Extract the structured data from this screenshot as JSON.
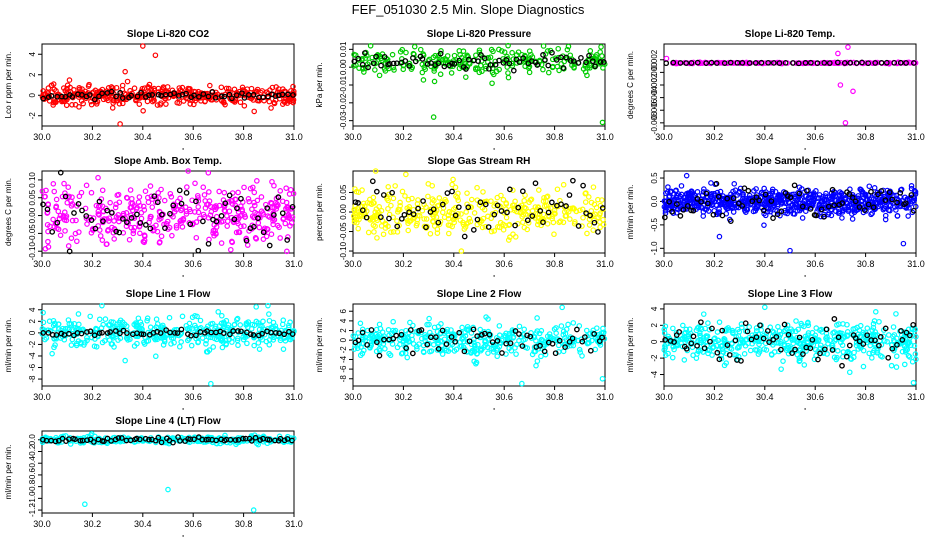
{
  "title": "FEF_051030  2.5 Min. Slope Diagnostics",
  "colors": {
    "black": "#000000"
  },
  "chart_data": [
    {
      "type": "scatter",
      "title": "Slope Li-820 CO2",
      "ylabel": "Lco r ppm per min.",
      "color": "#ff0000",
      "xlim": [
        30.0,
        31.0
      ],
      "ylim": [
        -3,
        5
      ],
      "xticks": [
        30.0,
        30.2,
        30.4,
        30.6,
        30.8,
        31.0
      ],
      "xtick_labels": [
        "30.0",
        "30.2",
        "30.4",
        "30.6",
        "30.8",
        "31.0"
      ],
      "yticks": [
        -2,
        0,
        2,
        4
      ],
      "ytick_labels": [
        "-2",
        "0",
        "2",
        "4"
      ],
      "center": 0,
      "spread": 0.45,
      "outliers": [
        [
          30.31,
          -2.8
        ],
        [
          30.4,
          4.8
        ],
        [
          30.45,
          3.9
        ],
        [
          30.33,
          2.3
        ]
      ],
      "n": 420,
      "nblack": 60,
      "black_spread": 0.15
    },
    {
      "type": "scatter",
      "title": "Slope Li-820 Pressure",
      "ylabel": "kPa per min.",
      "color": "#00cc00",
      "xlim": [
        30.0,
        31.0
      ],
      "ylim": [
        -0.033,
        0.013
      ],
      "xticks": [
        30.0,
        30.2,
        30.4,
        30.6,
        30.8,
        31.0
      ],
      "xtick_labels": [
        "30.0",
        "30.2",
        "30.4",
        "30.6",
        "30.8",
        "31.0"
      ],
      "yticks": [
        -0.03,
        -0.02,
        -0.01,
        0.0,
        0.01
      ],
      "ytick_labels": [
        "-0.03",
        "-0.02",
        "-0.01",
        "0.00",
        "0.01"
      ],
      "center": 0.003,
      "spread": 0.004,
      "outliers": [
        [
          30.32,
          -0.028
        ],
        [
          30.99,
          -0.031
        ],
        [
          30.07,
          0.012
        ]
      ],
      "n": 260,
      "nblack": 70,
      "black_spread": 0.003
    },
    {
      "type": "scatter",
      "title": "Slope Li-820 Temp.",
      "ylabel": "degrees C per min.",
      "color": "#ff00ff",
      "xlim": [
        30.0,
        31.0
      ],
      "ylim": [
        -0.0085,
        0.0045
      ],
      "xticks": [
        30.0,
        30.2,
        30.4,
        30.6,
        30.8,
        31.0
      ],
      "xtick_labels": [
        "30.0",
        "30.2",
        "30.4",
        "30.6",
        "30.8",
        "31.0"
      ],
      "yticks": [
        -0.008,
        -0.006,
        -0.004,
        -0.002,
        0.0,
        0.002
      ],
      "ytick_labels": [
        "-0.008",
        "-0.006",
        "-0.004",
        "-0.002",
        "0.000",
        "0.002"
      ],
      "center": 0.0015,
      "spread": 5e-05,
      "outliers": [
        [
          30.73,
          0.004
        ],
        [
          30.72,
          -0.008
        ],
        [
          30.7,
          -0.002
        ],
        [
          30.75,
          -0.003
        ],
        [
          30.69,
          0.003
        ],
        [
          30.01,
          0.0022
        ]
      ],
      "n": 160,
      "nblack": 40,
      "black_spread": 3e-05
    },
    {
      "type": "scatter",
      "title": "Slope Amb. Box Temp.",
      "ylabel": "degrees C per min.",
      "color": "#ff00ff",
      "xlim": [
        30.0,
        31.0
      ],
      "ylim": [
        -0.105,
        0.125
      ],
      "xticks": [
        30.0,
        30.2,
        30.4,
        30.6,
        30.8,
        31.0
      ],
      "xtick_labels": [
        "30.0",
        "30.2",
        "30.4",
        "30.6",
        "30.8",
        "31.0"
      ],
      "yticks": [
        -0.1,
        -0.05,
        0.0,
        0.05,
        0.1
      ],
      "ytick_labels": [
        "-0.10",
        "-0.05",
        "0.00",
        "0.05",
        "0.10"
      ],
      "center": 0.0,
      "spread": 0.04,
      "outliers": [
        [
          30.58,
          0.125
        ],
        [
          30.66,
          0.12
        ]
      ],
      "n": 420,
      "nblack": 60,
      "black_spread": 0.04
    },
    {
      "type": "scatter",
      "title": "Slope Gas Stream RH",
      "ylabel": "percent per min.",
      "color": "#ffff00",
      "xlim": [
        30.0,
        31.0
      ],
      "ylim": [
        -0.105,
        0.105
      ],
      "xticks": [
        30.0,
        30.2,
        30.4,
        30.6,
        30.8,
        31.0
      ],
      "xtick_labels": [
        "30.0",
        "30.2",
        "30.4",
        "30.6",
        "30.8",
        "31.0"
      ],
      "yticks": [
        -0.1,
        -0.05,
        0.0,
        0.05
      ],
      "ytick_labels": [
        "-0.10",
        "-0.05",
        "0.00",
        "0.05"
      ],
      "center": 0.0,
      "spread": 0.03,
      "outliers": [
        [
          30.09,
          0.105
        ],
        [
          30.43,
          -0.1
        ]
      ],
      "n": 380,
      "nblack": 60,
      "black_spread": 0.03
    },
    {
      "type": "scatter",
      "title": "Slope Sample Flow",
      "ylabel": "ml/min per min.",
      "color": "#0000ff",
      "xlim": [
        30.0,
        31.0
      ],
      "ylim": [
        -1.1,
        0.65
      ],
      "xticks": [
        30.0,
        30.2,
        30.4,
        30.6,
        30.8,
        31.0
      ],
      "xtick_labels": [
        "30.0",
        "30.2",
        "30.4",
        "30.6",
        "30.8",
        "31.0"
      ],
      "yticks": [
        -1.0,
        -0.5,
        0.0,
        0.5
      ],
      "ytick_labels": [
        "-1.0",
        "-0.5",
        "0.0",
        "0.5"
      ],
      "center": 0.0,
      "spread": 0.14,
      "outliers": [
        [
          30.09,
          0.55
        ],
        [
          30.5,
          -1.05
        ],
        [
          30.95,
          -0.9
        ],
        [
          30.22,
          -0.75
        ]
      ],
      "n": 700,
      "nblack": 70,
      "black_spread": 0.2
    },
    {
      "type": "scatter",
      "title": "Slope Line 1 Flow",
      "ylabel": "ml/min per min.",
      "color": "#00ffff",
      "xlim": [
        30.0,
        31.0
      ],
      "ylim": [
        -9.2,
        5
      ],
      "xticks": [
        30.0,
        30.2,
        30.4,
        30.6,
        30.8,
        31.0
      ],
      "xtick_labels": [
        "30.0",
        "30.2",
        "30.4",
        "30.6",
        "30.8",
        "31.0"
      ],
      "yticks": [
        -8,
        -6,
        -4,
        -2,
        0,
        2,
        4
      ],
      "ytick_labels": [
        "-8",
        "-6",
        "-4",
        "-2",
        "0",
        "2",
        "4"
      ],
      "center": 0.0,
      "spread": 1.3,
      "outliers": [
        [
          30.67,
          -8.8
        ],
        [
          30.33,
          -4.8
        ],
        [
          30.85,
          4.5
        ]
      ],
      "n": 400,
      "nblack": 60,
      "black_spread": 0.2
    },
    {
      "type": "scatter",
      "title": "Slope Line 2 Flow",
      "ylabel": "ml/min per min.",
      "color": "#00ffff",
      "xlim": [
        30.0,
        31.0
      ],
      "ylim": [
        -9.5,
        7.5
      ],
      "xticks": [
        30.0,
        30.2,
        30.4,
        30.6,
        30.8,
        31.0
      ],
      "xtick_labels": [
        "30.0",
        "30.2",
        "30.4",
        "30.6",
        "30.8",
        "31.0"
      ],
      "yticks": [
        -8,
        -6,
        -4,
        -2,
        0,
        2,
        4,
        6
      ],
      "ytick_labels": [
        "-8",
        "-6",
        "-4",
        "-2",
        "0",
        "2",
        "4",
        "6"
      ],
      "center": 0.0,
      "spread": 1.6,
      "outliers": [
        [
          30.67,
          -9
        ],
        [
          30.83,
          6.8
        ],
        [
          30.99,
          -8.0
        ]
      ],
      "n": 400,
      "nblack": 60,
      "black_spread": 1.4
    },
    {
      "type": "scatter",
      "title": "Slope Line 3 Flow",
      "ylabel": "ml/min per min.",
      "color": "#00ffff",
      "xlim": [
        30.0,
        31.0
      ],
      "ylim": [
        -5.4,
        4.6
      ],
      "xticks": [
        30.0,
        30.2,
        30.4,
        30.6,
        30.8,
        31.0
      ],
      "xtick_labels": [
        "30.0",
        "30.2",
        "30.4",
        "30.6",
        "30.8",
        "31.0"
      ],
      "yticks": [
        -4,
        -2,
        0,
        2,
        4
      ],
      "ytick_labels": [
        "-4",
        "-2",
        "0",
        "2",
        "4"
      ],
      "center": 0.0,
      "spread": 1.2,
      "outliers": [
        [
          30.99,
          -5.0
        ],
        [
          30.4,
          4.2
        ]
      ],
      "n": 500,
      "nblack": 70,
      "black_spread": 1.2
    },
    {
      "type": "scatter",
      "title": "Slope Line 4 (LT) Flow",
      "ylabel": "ml/min per min.",
      "color": "#00ffff",
      "xlim": [
        30.0,
        31.0
      ],
      "ylim": [
        -1.25,
        0.15
      ],
      "xticks": [
        30.0,
        30.2,
        30.4,
        30.6,
        30.8,
        31.0
      ],
      "xtick_labels": [
        "30.0",
        "30.2",
        "30.4",
        "30.6",
        "30.8",
        "31.0"
      ],
      "yticks": [
        -1.2,
        -1.0,
        -0.8,
        -0.6,
        -0.4,
        -0.2,
        0.0
      ],
      "ytick_labels": [
        "-1.2",
        "-1.0",
        "-0.8",
        "-0.6",
        "-0.4",
        "-0.2",
        "0.0"
      ],
      "center": 0.0,
      "spread": 0.03,
      "outliers": [
        [
          30.17,
          -1.1
        ],
        [
          30.84,
          -1.2
        ],
        [
          30.5,
          -0.85
        ]
      ],
      "n": 300,
      "nblack": 70,
      "black_spread": 0.02
    }
  ]
}
